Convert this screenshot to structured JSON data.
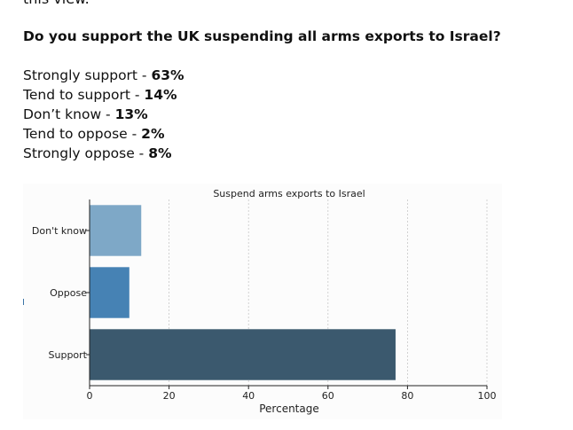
{
  "article": {
    "cut_line": "this view.",
    "question": "Do you support the UK suspending all arms exports to Israel?",
    "results": [
      {
        "label": "Strongly support - ",
        "value": "63%"
      },
      {
        "label": "Tend to support - ",
        "value": "14%"
      },
      {
        "label": "Don’t know - ",
        "value": "13%"
      },
      {
        "label": "Tend to oppose - ",
        "value": "2%"
      },
      {
        "label": "Strongly oppose - ",
        "value": "8%"
      }
    ]
  },
  "chart_data": {
    "type": "bar",
    "orientation": "horizontal",
    "title": "Suspend arms exports to Israel",
    "xlabel": "Percentage",
    "ylabel": "",
    "xlim": [
      0,
      100
    ],
    "xticks": [
      "0",
      "20",
      "40",
      "60",
      "80",
      "100"
    ],
    "categories": [
      "Don't know",
      "Oppose",
      "Support"
    ],
    "values": [
      13,
      10,
      77
    ],
    "colors": [
      "#7ea8c7",
      "#4682b4",
      "#3b596e"
    ],
    "grid": "vertical dotted"
  }
}
